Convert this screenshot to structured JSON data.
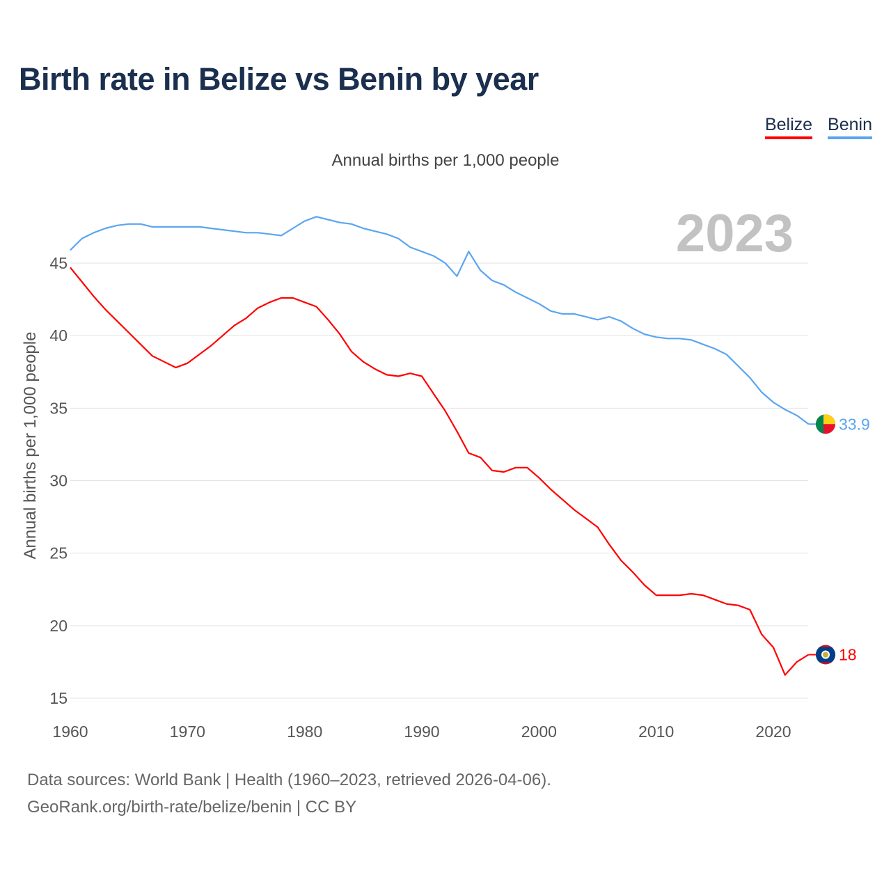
{
  "title": "Birth rate in Belize vs Benin by year",
  "legend": [
    {
      "label": "Belize",
      "color": "#ff0000"
    },
    {
      "label": "Benin",
      "color": "#5aa5f0"
    }
  ],
  "footer": {
    "line1": "Data sources: World Bank | Health (1960–2023, retrieved 2026-04-06).",
    "line2": "GeoRank.org/birth-rate/belize/benin | CC BY"
  },
  "chart_data": {
    "type": "line",
    "title": "Birth rate in Belize vs Benin by year",
    "subtitle": "Annual births per 1,000 people",
    "ylabel": "Annual births per 1,000 people",
    "xlabel": "",
    "year_label": "2023",
    "xlim": [
      1960,
      2023
    ],
    "ylim": [
      15,
      48.5
    ],
    "x_ticks": [
      1960,
      1970,
      1980,
      1990,
      2000,
      2010,
      2020
    ],
    "y_ticks": [
      15,
      20,
      25,
      30,
      35,
      40,
      45
    ],
    "grid": true,
    "legend_position": "top-right",
    "x_start": 1960,
    "series": [
      {
        "name": "Belize",
        "color": "#ff0000",
        "end_label": "18",
        "values": [
          44.7,
          43.7,
          42.7,
          41.8,
          41.0,
          40.2,
          39.4,
          38.6,
          38.2,
          37.8,
          38.1,
          38.7,
          39.3,
          40.0,
          40.7,
          41.2,
          41.9,
          42.3,
          42.6,
          42.6,
          42.3,
          42.0,
          41.1,
          40.1,
          38.9,
          38.2,
          37.7,
          37.3,
          37.2,
          37.4,
          37.2,
          36.0,
          34.8,
          33.4,
          31.9,
          31.6,
          30.7,
          30.6,
          30.9,
          30.9,
          30.2,
          29.4,
          28.7,
          28.0,
          27.4,
          26.8,
          25.6,
          24.5,
          23.7,
          22.8,
          22.1,
          22.1,
          22.1,
          22.2,
          22.1,
          21.8,
          21.5,
          21.4,
          21.1,
          19.4,
          18.5,
          16.6,
          17.5,
          18.0
        ]
      },
      {
        "name": "Benin",
        "color": "#5aa5f0",
        "end_label": "33.9",
        "values": [
          45.9,
          46.7,
          47.1,
          47.4,
          47.6,
          47.7,
          47.7,
          47.5,
          47.5,
          47.5,
          47.5,
          47.5,
          47.4,
          47.3,
          47.2,
          47.1,
          47.1,
          47.0,
          46.9,
          47.4,
          47.9,
          48.2,
          48.0,
          47.8,
          47.7,
          47.4,
          47.2,
          47.0,
          46.7,
          46.1,
          45.8,
          45.5,
          45.0,
          44.1,
          45.8,
          44.5,
          43.8,
          43.5,
          43.0,
          42.6,
          42.2,
          41.7,
          41.5,
          41.5,
          41.3,
          41.1,
          41.3,
          41.0,
          40.5,
          40.1,
          39.9,
          39.8,
          39.8,
          39.7,
          39.4,
          39.1,
          38.7,
          37.9,
          37.1,
          36.1,
          35.4,
          34.9,
          34.5,
          33.9
        ]
      }
    ]
  }
}
